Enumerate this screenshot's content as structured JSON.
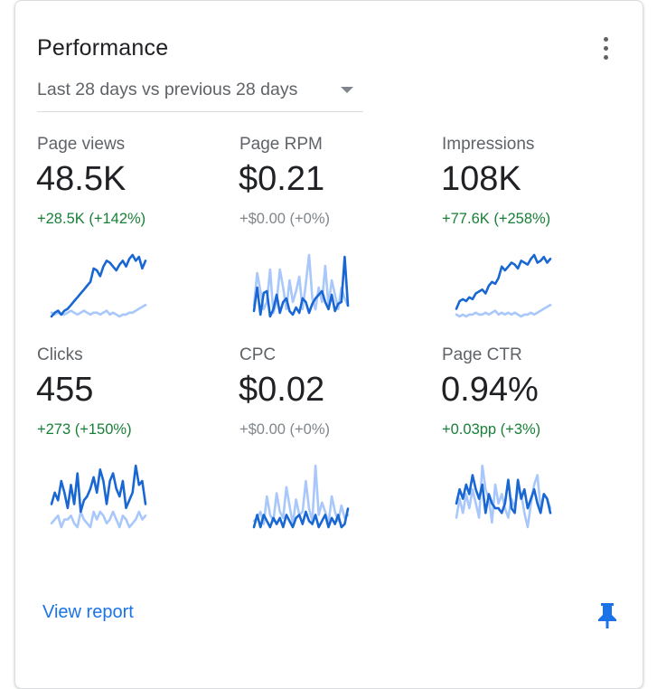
{
  "card": {
    "title": "Performance",
    "period_label": "Last 28 days vs previous 28 days",
    "view_report_label": "View report"
  },
  "colors": {
    "current_series": "#1967d2",
    "previous_series": "#a8c7fa",
    "positive_change": "#188038",
    "neutral_change": "#80868b",
    "link": "#1a73e8"
  },
  "icons": {
    "menu": "more-vert-icon",
    "dropdown": "caret-down-icon",
    "pin": "pin-icon"
  },
  "metrics": [
    {
      "label": "Page views",
      "value": "48.5K",
      "change": "+28.5K (+142%)",
      "trend": "up",
      "current": [
        2,
        4,
        5,
        3,
        5,
        6,
        8,
        10,
        12,
        14,
        16,
        18,
        20,
        27,
        26,
        23,
        28,
        31,
        30,
        28,
        26,
        29,
        31,
        28,
        32,
        34,
        31,
        33,
        27,
        31
      ],
      "previous": [
        4,
        3,
        4,
        3,
        3,
        4,
        5,
        4,
        3,
        4,
        5,
        4,
        3,
        4,
        4,
        3,
        4,
        5,
        3,
        4,
        3,
        2,
        3,
        3,
        4,
        4,
        5,
        6,
        7,
        8
      ]
    },
    {
      "label": "Page RPM",
      "value": "$0.21",
      "change": "+$0.00 (+0%)",
      "trend": "flat",
      "current": [
        5,
        18,
        3,
        15,
        16,
        2,
        6,
        14,
        4,
        10,
        12,
        5,
        3,
        7,
        4,
        12,
        10,
        4,
        9,
        12,
        14,
        16,
        10,
        6,
        14,
        5,
        9,
        10,
        35,
        8
      ],
      "previous": [
        8,
        26,
        16,
        6,
        10,
        28,
        4,
        10,
        28,
        18,
        6,
        22,
        10,
        16,
        24,
        6,
        20,
        36,
        12,
        6,
        18,
        10,
        30,
        8,
        22,
        14,
        6,
        18,
        12,
        8
      ]
    },
    {
      "label": "Impressions",
      "value": "108K",
      "change": "+77.6K (+258%)",
      "trend": "up",
      "current": [
        6,
        10,
        11,
        10,
        12,
        11,
        14,
        15,
        16,
        14,
        18,
        20,
        19,
        22,
        28,
        26,
        28,
        30,
        29,
        27,
        31,
        30,
        29,
        32,
        34,
        30,
        31,
        33,
        30,
        32
      ],
      "previous": [
        3,
        2,
        3,
        2,
        3,
        3,
        4,
        3,
        3,
        4,
        3,
        4,
        5,
        3,
        4,
        3,
        4,
        3,
        4,
        3,
        2,
        3,
        3,
        4,
        3,
        4,
        5,
        6,
        7,
        8
      ]
    },
    {
      "label": "Clicks",
      "value": "455",
      "change": "+273 (+150%)",
      "trend": "up",
      "current": [
        14,
        20,
        16,
        26,
        20,
        12,
        24,
        14,
        30,
        10,
        16,
        18,
        22,
        28,
        20,
        32,
        26,
        14,
        26,
        30,
        22,
        18,
        26,
        12,
        16,
        20,
        34,
        24,
        26,
        14
      ],
      "previous": [
        4,
        6,
        8,
        2,
        6,
        6,
        8,
        4,
        2,
        10,
        6,
        4,
        2,
        10,
        6,
        10,
        8,
        4,
        6,
        10,
        6,
        2,
        8,
        6,
        2,
        4,
        6,
        10,
        6,
        8
      ]
    },
    {
      "label": "CPC",
      "value": "$0.02",
      "change": "+$0.00 (+0%)",
      "trend": "flat",
      "current": [
        4,
        12,
        4,
        12,
        8,
        4,
        10,
        6,
        10,
        4,
        12,
        8,
        4,
        10,
        12,
        6,
        14,
        8,
        6,
        12,
        4,
        8,
        12,
        4,
        10,
        6,
        12,
        4,
        6,
        16
      ],
      "previous": [
        8,
        10,
        14,
        6,
        24,
        12,
        8,
        26,
        14,
        10,
        30,
        18,
        6,
        22,
        12,
        14,
        34,
        16,
        8,
        44,
        12,
        20,
        14,
        6,
        24,
        14,
        8,
        18,
        10,
        12
      ]
    },
    {
      "label": "Page CTR",
      "value": "0.94%",
      "change": "+0.03pp (+3%)",
      "trend": "up",
      "current": [
        14,
        20,
        16,
        22,
        18,
        26,
        20,
        16,
        22,
        10,
        18,
        14,
        12,
        12,
        10,
        14,
        24,
        12,
        10,
        24,
        16,
        20,
        12,
        16,
        20,
        14,
        10,
        18,
        16,
        10
      ],
      "previous": [
        8,
        16,
        10,
        18,
        12,
        20,
        14,
        8,
        30,
        20,
        16,
        6,
        22,
        14,
        18,
        12,
        8,
        16,
        12,
        20,
        18,
        10,
        4,
        14,
        22,
        26,
        12,
        18,
        16,
        12
      ]
    }
  ]
}
